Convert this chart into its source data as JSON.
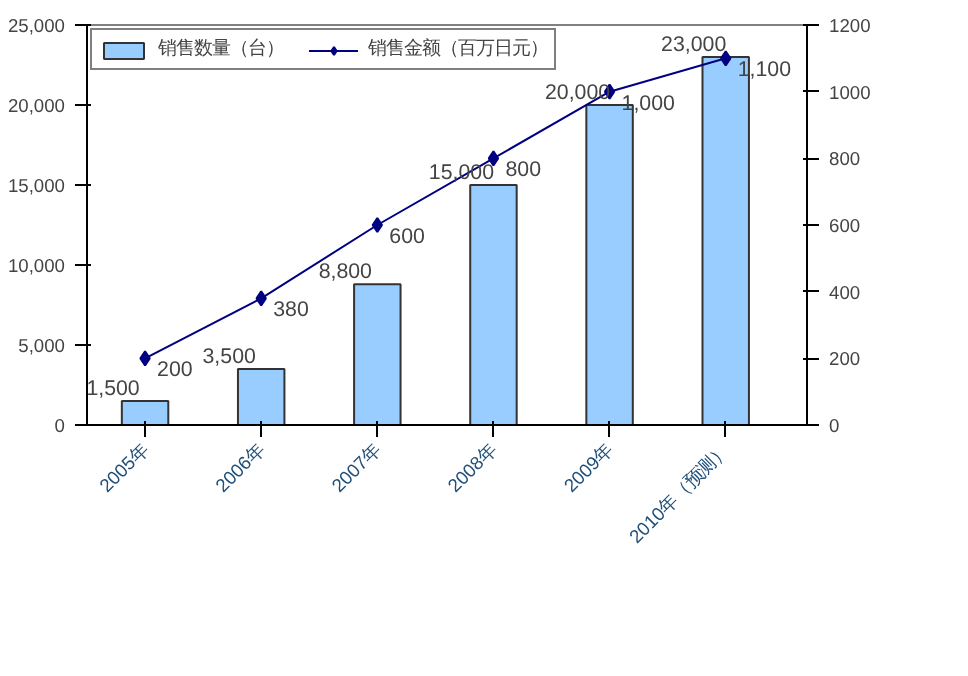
{
  "chart_data": {
    "type": "bar",
    "categories": [
      "2005年",
      "2006年",
      "2007年",
      "2008年",
      "2009年",
      "2010年（预测）"
    ],
    "series": [
      {
        "name": "销售数量（台）",
        "color": "#99ccff",
        "values": [
          1500,
          3500,
          8800,
          15000,
          20000,
          23000
        ],
        "value_labels": [
          "1,500",
          "3,500",
          "8,800",
          "15,000",
          "20,000",
          "23,000"
        ]
      },
      {
        "name": "销售金额（百万日元）",
        "type": "line",
        "axis": "y2",
        "color": "#000080",
        "values": [
          200,
          380,
          600,
          800,
          1000,
          1100
        ],
        "value_labels": [
          "200",
          "380",
          "600",
          "800",
          "1,000",
          "1,100"
        ]
      }
    ],
    "ylim": [
      0,
      25000
    ],
    "yticks": [
      0,
      {
        "value": 5000,
        "label": "5,000"
      },
      {
        "value": 10000,
        "label": "10,000"
      },
      {
        "value": 15000,
        "label": "15,000"
      },
      {
        "value": 20000,
        "label": "20,000"
      },
      {
        "value": 25000,
        "label": "25,000"
      }
    ],
    "y2lim": [
      0,
      1200
    ],
    "y2ticks": [
      0,
      200,
      400,
      600,
      800,
      1000,
      1200
    ],
    "legend": "top left",
    "marker": "diamond"
  }
}
